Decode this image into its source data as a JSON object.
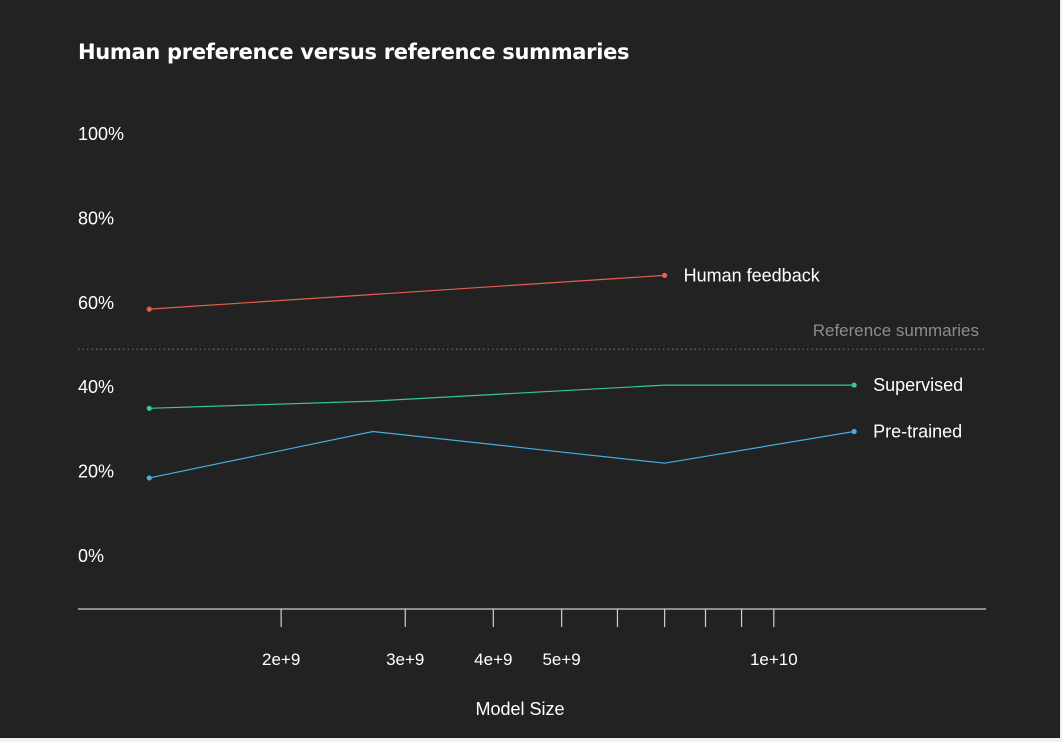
{
  "chart_data": {
    "type": "line",
    "title": "Human preference versus reference summaries",
    "xlabel": "Model Size",
    "ylabel": "",
    "x_scale": "log",
    "x_ticks_major": [
      {
        "value": 2000000000,
        "label": "2e+9"
      },
      {
        "value": 3000000000,
        "label": "3e+9"
      },
      {
        "value": 4000000000,
        "label": "4e+9"
      },
      {
        "value": 5000000000,
        "label": "5e+9"
      },
      {
        "value": 10000000000,
        "label": "1e+10"
      }
    ],
    "x_ticks_minor": [
      6000000000,
      7000000000,
      8000000000,
      9000000000
    ],
    "xlim": [
      1030000000,
      20000000000
    ],
    "y_ticks": [
      {
        "value": 0,
        "label": "0%"
      },
      {
        "value": 20,
        "label": "20%"
      },
      {
        "value": 40,
        "label": "40%"
      },
      {
        "value": 60,
        "label": "60%"
      },
      {
        "value": 80,
        "label": "80%"
      },
      {
        "value": 100,
        "label": "100%"
      }
    ],
    "ylim": [
      0,
      100
    ],
    "grid": false,
    "reference_line": {
      "value": 49,
      "label": "Reference summaries",
      "color": "#8c8c8c"
    },
    "series": [
      {
        "name": "Human feedback",
        "color": "#e0614c",
        "x": [
          1300000000,
          7000000000
        ],
        "y": [
          58.5,
          66.5
        ]
      },
      {
        "name": "Supervised",
        "color": "#38c98f",
        "x": [
          1300000000,
          2700000000,
          7000000000,
          13000000000
        ],
        "y": [
          35,
          36.7,
          40.5,
          40.5
        ]
      },
      {
        "name": "Pre-trained",
        "color": "#44aee0",
        "x": [
          1300000000,
          2700000000,
          7000000000,
          13000000000
        ],
        "y": [
          18.5,
          29.5,
          22,
          29.5
        ]
      }
    ]
  }
}
